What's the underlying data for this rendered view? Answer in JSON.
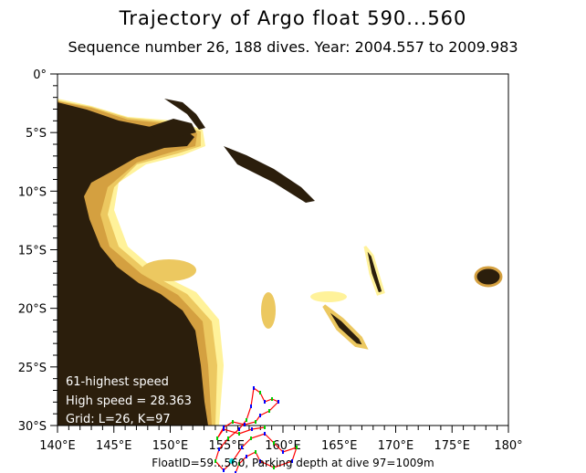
{
  "title": "Trajectory of Argo float 590...560",
  "subtitle": "Sequence number 26, 188 dives. Year: 2004.557 to 2009.983",
  "map": {
    "lon_range": [
      140,
      180
    ],
    "lat_range": [
      -30,
      0
    ],
    "lon_ticks": [
      "140°E",
      "145°E",
      "150°E",
      "155°E",
      "160°E",
      "165°E",
      "170°E",
      "175°E",
      "180°"
    ],
    "lat_ticks": [
      "0°",
      "5°S",
      "10°S",
      "15°S",
      "20°S",
      "25°S",
      "30°S"
    ],
    "colors": {
      "land": "#2b1e0c",
      "shelf": "#d4a040",
      "shallow": "#ecc860",
      "light": "#fff29a",
      "track": "#ff0000",
      "dive_a": "#00cc00",
      "dive_b": "#0000ff",
      "highlight": "#00e0e0"
    }
  },
  "info": {
    "line1": "61-highest speed",
    "line2": "High speed = 28.363",
    "line3": "Grid: L=26, K=97"
  },
  "footer": "FloatID=59...560, Parking depth at dive 97=1009m"
}
